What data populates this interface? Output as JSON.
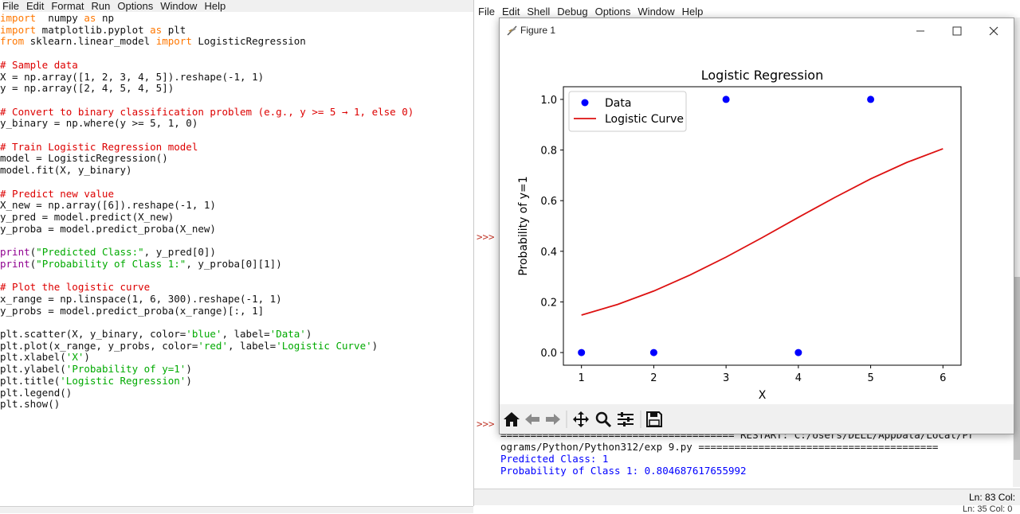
{
  "editor": {
    "menu": [
      "File",
      "Edit",
      "Format",
      "Run",
      "Options",
      "Window",
      "Help"
    ],
    "lines": [
      [
        [
          "kw",
          "import"
        ],
        [
          "",
          "  numpy "
        ],
        [
          "kw",
          "as"
        ],
        [
          "",
          " np"
        ]
      ],
      [
        [
          "kw",
          "import"
        ],
        [
          "",
          " matplotlib.pyplot "
        ],
        [
          "kw",
          "as"
        ],
        [
          "",
          " plt"
        ]
      ],
      [
        [
          "kw",
          "from"
        ],
        [
          "",
          " sklearn.linear_model "
        ],
        [
          "kw",
          "import"
        ],
        [
          "",
          " LogisticRegression"
        ]
      ],
      [],
      [
        [
          "cm",
          "# Sample data"
        ]
      ],
      [
        [
          "",
          "X = np.array([1, 2, 3, 4, 5]).reshape(-1, 1)"
        ]
      ],
      [
        [
          "",
          "y = np.array([2, 4, 5, 4, 5])"
        ]
      ],
      [],
      [
        [
          "cm",
          "# Convert to binary classification problem (e.g., y >= 5 → 1, else 0)"
        ]
      ],
      [
        [
          "",
          "y_binary = np.where(y >= 5, 1, 0)"
        ]
      ],
      [],
      [
        [
          "cm",
          "# Train Logistic Regression model"
        ]
      ],
      [
        [
          "",
          "model = LogisticRegression()"
        ]
      ],
      [
        [
          "",
          "model.fit(X, y_binary)"
        ]
      ],
      [],
      [
        [
          "cm",
          "# Predict new value"
        ]
      ],
      [
        [
          "",
          "X_new = np.array([6]).reshape(-1, 1)"
        ]
      ],
      [
        [
          "",
          "y_pred = model.predict(X_new)"
        ]
      ],
      [
        [
          "",
          "y_proba = model.predict_proba(X_new)"
        ]
      ],
      [],
      [
        [
          "bi",
          "print"
        ],
        [
          "",
          "("
        ],
        [
          "st",
          "\"Predicted Class:\""
        ],
        [
          "",
          ", y_pred[0])"
        ]
      ],
      [
        [
          "bi",
          "print"
        ],
        [
          "",
          "("
        ],
        [
          "st",
          "\"Probability of Class 1:\""
        ],
        [
          "",
          ", y_proba[0][1])"
        ]
      ],
      [],
      [
        [
          "cm",
          "# Plot the logistic curve"
        ]
      ],
      [
        [
          "",
          "x_range = np.linspace(1, 6, 300).reshape(-1, 1)"
        ]
      ],
      [
        [
          "",
          "y_probs = model.predict_proba(x_range)[:, 1]"
        ]
      ],
      [],
      [
        [
          "",
          "plt.scatter(X, y_binary, color="
        ],
        [
          "st",
          "'blue'"
        ],
        [
          "",
          ", label="
        ],
        [
          "st",
          "'Data'"
        ],
        [
          "",
          ")"
        ]
      ],
      [
        [
          "",
          "plt.plot(x_range, y_probs, color="
        ],
        [
          "st",
          "'red'"
        ],
        [
          "",
          ", label="
        ],
        [
          "st",
          "'Logistic Curve'"
        ],
        [
          "",
          ")"
        ]
      ],
      [
        [
          "",
          "plt.xlabel("
        ],
        [
          "st",
          "'X'"
        ],
        [
          "",
          ")"
        ]
      ],
      [
        [
          "",
          "plt.ylabel("
        ],
        [
          "st",
          "'Probability of y=1'"
        ],
        [
          "",
          ")"
        ]
      ],
      [
        [
          "",
          "plt.title("
        ],
        [
          "st",
          "'Logistic Regression'"
        ],
        [
          "",
          ")"
        ]
      ],
      [
        [
          "",
          "plt.legend()"
        ]
      ],
      [
        [
          "",
          "plt.show()"
        ]
      ]
    ]
  },
  "shell": {
    "menu": [
      "File",
      "Edit",
      "Shell",
      "Debug",
      "Options",
      "Window",
      "Help"
    ],
    "prompt": ">>>",
    "restart_line": "======================================= RESTART: C:/Users/DELL/AppData/Local/Pr",
    "restart_line2": "ograms/Python/Python312/exp 9.py ========================================",
    "output_predicted": "Predicted Class: 1",
    "output_probability": "Probability of Class 1: 0.804687617655992",
    "status": "Ln: 83  Col:"
  },
  "bottom_status": "Ln: 35  Col: 0",
  "figure": {
    "window_title": "Figure 1",
    "toolbar_icons": [
      "home-icon",
      "back-arrow-icon",
      "forward-arrow-icon",
      "pan-icon",
      "zoom-icon",
      "configure-subplots-icon",
      "save-icon"
    ]
  },
  "chart_data": {
    "type": "scatter",
    "title": "Logistic Regression",
    "xlabel": "X",
    "ylabel": "Probability of y=1",
    "xlim": [
      0.75,
      6.25
    ],
    "ylim": [
      -0.05,
      1.05
    ],
    "xticks": [
      1,
      2,
      3,
      4,
      5,
      6
    ],
    "yticks": [
      0.0,
      0.2,
      0.4,
      0.6,
      0.8,
      1.0
    ],
    "legend_position": "top-left",
    "colors": {
      "data": "#0000ff",
      "curve": "#dd1111"
    },
    "series": [
      {
        "name": "Data",
        "kind": "scatter",
        "x": [
          1,
          2,
          3,
          4,
          5
        ],
        "y": [
          0,
          0,
          1,
          0,
          1
        ]
      },
      {
        "name": "Logistic Curve",
        "kind": "line",
        "x": [
          1.0,
          1.5,
          2.0,
          2.5,
          3.0,
          3.5,
          4.0,
          4.5,
          5.0,
          5.5,
          6.0
        ],
        "y": [
          0.148,
          0.19,
          0.243,
          0.306,
          0.377,
          0.454,
          0.534,
          0.612,
          0.686,
          0.751,
          0.805
        ]
      }
    ]
  }
}
